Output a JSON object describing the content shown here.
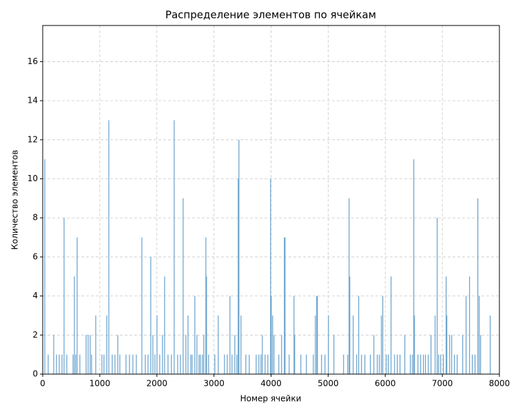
{
  "chart_data": {
    "type": "bar",
    "title": "Распределение элементов по ячейкам",
    "xlabel": "Номер ячейки",
    "ylabel": "Количество элементов",
    "color": "#65a0cc",
    "grid": true,
    "xlim": [
      0,
      8000
    ],
    "ylim": [
      0,
      17.85
    ],
    "xticks": [
      0,
      1000,
      2000,
      3000,
      4000,
      5000,
      6000,
      7000,
      8000
    ],
    "yticks": [
      0,
      2,
      4,
      6,
      8,
      10,
      12,
      14,
      16
    ],
    "x": [
      36,
      96,
      193,
      241,
      289,
      338,
      374,
      422,
      531,
      555,
      579,
      603,
      651,
      760,
      796,
      832,
      856,
      929,
      1037,
      1073,
      1122,
      1158,
      1218,
      1266,
      1315,
      1351,
      1459,
      1520,
      1580,
      1640,
      1737,
      1797,
      1845,
      1893,
      1930,
      1966,
      2002,
      2050,
      2098,
      2135,
      2195,
      2255,
      2303,
      2364,
      2412,
      2460,
      2508,
      2545,
      2593,
      2617,
      2665,
      2701,
      2738,
      2762,
      2798,
      2822,
      2858,
      2870,
      2906,
      3015,
      3075,
      3184,
      3232,
      3280,
      3316,
      3365,
      3401,
      3425,
      3437,
      3473,
      3558,
      3618,
      3739,
      3787,
      3823,
      3847,
      3895,
      3944,
      3992,
      4004,
      4028,
      4052,
      4136,
      4185,
      4233,
      4245,
      4317,
      4402,
      4414,
      4522,
      4619,
      4740,
      4776,
      4800,
      4812,
      4884,
      4945,
      5005,
      5101,
      5270,
      5342,
      5367,
      5379,
      5439,
      5499,
      5535,
      5584,
      5644,
      5740,
      5801,
      5861,
      5897,
      5933,
      5957,
      6018,
      6054,
      6102,
      6163,
      6211,
      6259,
      6343,
      6440,
      6476,
      6500,
      6512,
      6573,
      6621,
      6669,
      6705,
      6754,
      6802,
      6874,
      6910,
      6935,
      6971,
      7019,
      7067,
      7079,
      7128,
      7164,
      7212,
      7260,
      7357,
      7417,
      7477,
      7525,
      7573,
      7622,
      7646,
      7670,
      7839
    ],
    "values": [
      11,
      1,
      2,
      1,
      1,
      1,
      8,
      1,
      1,
      5,
      1,
      7,
      1,
      2,
      2,
      2,
      1,
      3,
      1,
      1,
      3,
      13,
      1,
      1,
      2,
      1,
      1,
      1,
      1,
      1,
      7,
      1,
      1,
      6,
      2,
      1,
      3,
      1,
      2,
      5,
      1,
      1,
      13,
      1,
      1,
      9,
      2,
      3,
      1,
      1,
      4,
      2,
      1,
      1,
      1,
      2,
      7,
      5,
      1,
      1,
      3,
      1,
      1,
      4,
      1,
      2,
      1,
      10,
      12,
      3,
      1,
      1,
      1,
      1,
      1,
      2,
      1,
      1,
      10,
      4,
      3,
      2,
      1,
      2,
      7,
      7,
      1,
      4,
      2,
      1,
      1,
      1,
      3,
      4,
      4,
      1,
      1,
      3,
      2,
      1,
      1,
      9,
      5,
      3,
      1,
      4,
      1,
      1,
      1,
      2,
      1,
      1,
      3,
      4,
      1,
      1,
      5,
      1,
      1,
      1,
      2,
      1,
      1,
      11,
      3,
      1,
      1,
      1,
      1,
      1,
      2,
      3,
      8,
      1,
      1,
      1,
      5,
      3,
      2,
      2,
      1,
      1,
      2,
      4,
      5,
      1,
      1,
      9,
      4,
      2,
      3
    ]
  }
}
